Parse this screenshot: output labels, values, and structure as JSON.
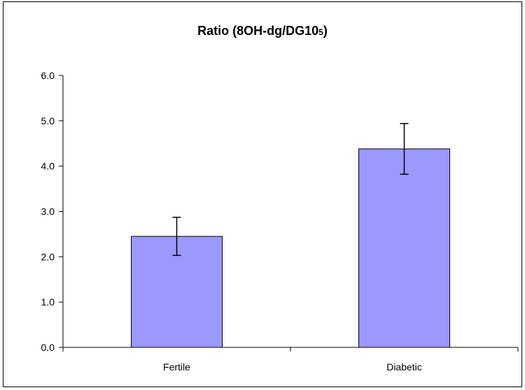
{
  "chart_data": {
    "type": "bar",
    "title": "Ratio (8OH-dg/DG10",
    "title_superscript": "5",
    "title_suffix": ")",
    "categories": [
      "Fertile",
      "Diabetic"
    ],
    "series": [
      {
        "values": [
          2.45,
          4.38
        ],
        "error": [
          0.42,
          0.56
        ],
        "color": "#9999ff"
      }
    ],
    "ylim": [
      0,
      6
    ],
    "y_ticks": [
      "0.0",
      "1.0",
      "2.0",
      "3.0",
      "4.0",
      "5.0",
      "6.0"
    ],
    "grid": false,
    "legend": "none",
    "xlabel": "",
    "ylabel": ""
  }
}
